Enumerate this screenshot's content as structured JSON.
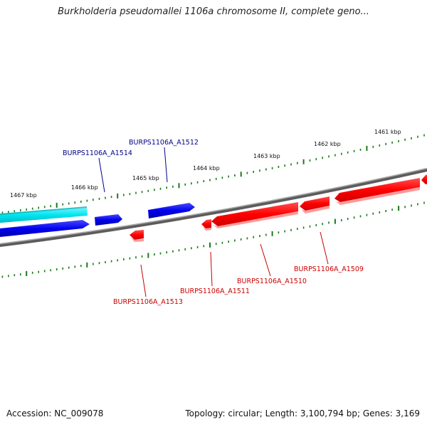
{
  "title": "Burkholderia pseudomallei 1106a chromosome II, complete geno...",
  "footer": {
    "accession": "Accession: NC_009078",
    "stats": "Topology: circular; Length: 3,100,794 bp; Genes: 3,169"
  },
  "scale_labels": [
    "1467 kbp",
    "1466 kbp",
    "1465 kbp",
    "1464 kbp",
    "1463 kbp",
    "1462 kbp",
    "1461 kbp"
  ],
  "genes": [
    {
      "label": "BURPS1106A_A1514",
      "strand": "forward"
    },
    {
      "label": "BURPS1106A_A1512",
      "strand": "forward"
    },
    {
      "label": "BURPS1106A_A1513",
      "strand": "reverse"
    },
    {
      "label": "BURPS1106A_A1511",
      "strand": "reverse"
    },
    {
      "label": "BURPS1106A_A1510",
      "strand": "reverse"
    },
    {
      "label": "BURPS1106A_A1509",
      "strand": "reverse"
    }
  ],
  "colors": {
    "forward_gene": "#0000dd",
    "forward_label": "#00008b",
    "cyan_feature": "#00d8e0",
    "reverse_gene": "#ff0000",
    "reverse_label": "#cc0000",
    "backbone": "#7a7a7a",
    "ticks": "#1a7a1a"
  }
}
